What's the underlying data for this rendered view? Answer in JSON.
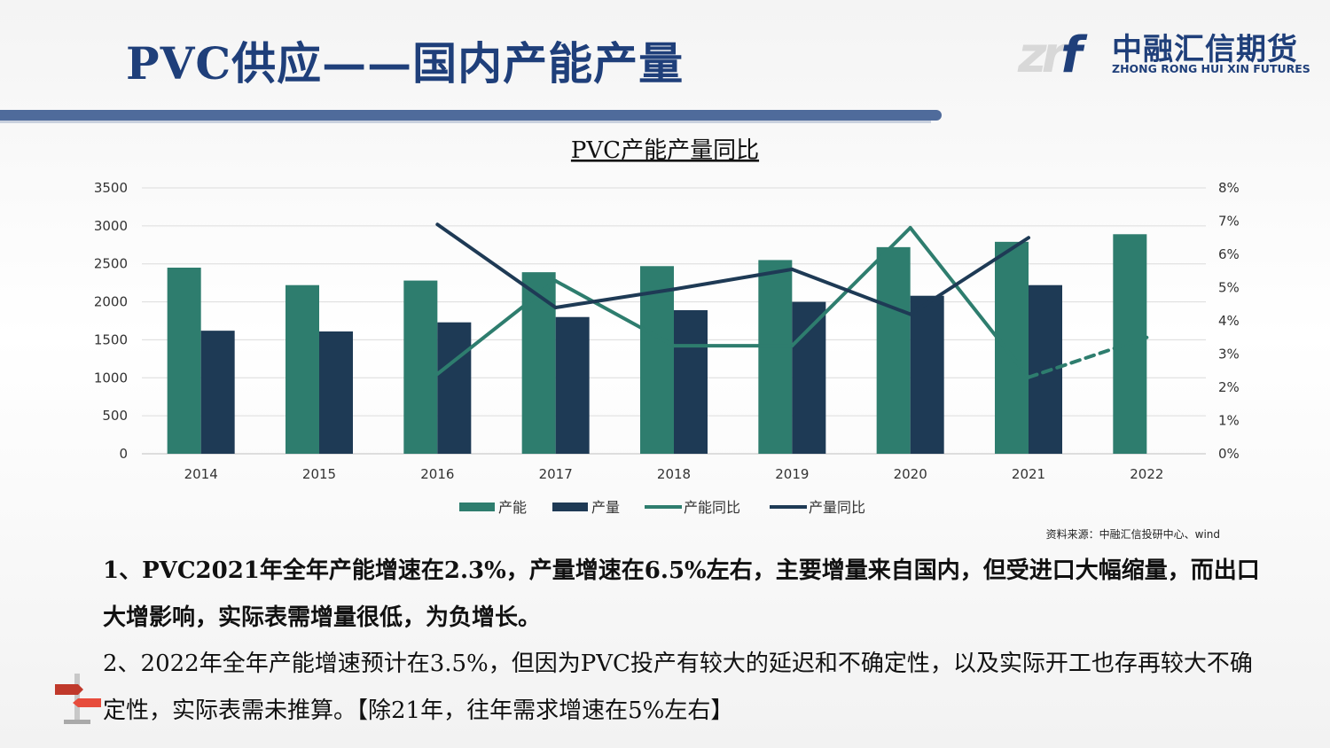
{
  "slide_title": "PVC供应——国内产能产量",
  "logo": {
    "mark_a": "zr",
    "mark_b": "f",
    "cn": "中融汇信期货",
    "en": "ZHONG RONG HUI XIN FUTURES"
  },
  "colors": {
    "capacity": "#2e7d6e",
    "output": "#1e3a55",
    "title": "#1f3f7a",
    "bar_band": "#4f6b9b"
  },
  "chart_data": {
    "type": "bar",
    "title": "PVC产能产量同比",
    "categories": [
      "2014",
      "2015",
      "2016",
      "2017",
      "2018",
      "2019",
      "2020",
      "2021",
      "2022"
    ],
    "series": [
      {
        "name": "产能",
        "kind": "bar",
        "axis": "left",
        "values": [
          2450,
          2220,
          2280,
          2390,
          2470,
          2550,
          2720,
          2790,
          2890
        ]
      },
      {
        "name": "产量",
        "kind": "bar",
        "axis": "left",
        "values": [
          1620,
          1610,
          1730,
          1800,
          1890,
          2000,
          2080,
          2220,
          null
        ]
      },
      {
        "name": "产能同比",
        "kind": "line",
        "axis": "right",
        "values": [
          null,
          null,
          2.4,
          5.2,
          3.25,
          3.25,
          6.8,
          2.3,
          3.5
        ],
        "dashed_from": "2021"
      },
      {
        "name": "产量同比",
        "kind": "line",
        "axis": "right",
        "values": [
          null,
          null,
          6.9,
          4.4,
          4.95,
          5.55,
          4.2,
          6.5,
          null
        ]
      }
    ],
    "y_left": {
      "min": 0,
      "max": 3500,
      "ticks": [
        "0",
        "500",
        "1000",
        "1500",
        "2000",
        "2500",
        "3000",
        "3500"
      ]
    },
    "y_right": {
      "min": 0,
      "max": 8,
      "ticks": [
        "0%",
        "1%",
        "2%",
        "3%",
        "4%",
        "5%",
        "6%",
        "7%",
        "8%"
      ]
    },
    "grid": true,
    "legend_position": "bottom"
  },
  "source": "资料来源：中融汇信投研中心、wind",
  "paragraphs": [
    "1、PVC2021年全年产能增速在2.3%，产量增速在6.5%左右，主要增量来自国内，但受进口大幅缩量，而出口大增影响，实际表需增量很低，为负增长。",
    "2、2022年全年产能增速预计在3.5%，但因为PVC投产有较大的延迟和不确定性，以及实际开工也存再较大不确定性，实际表需未推算。【除21年，往年需求增速在5%左右】"
  ]
}
